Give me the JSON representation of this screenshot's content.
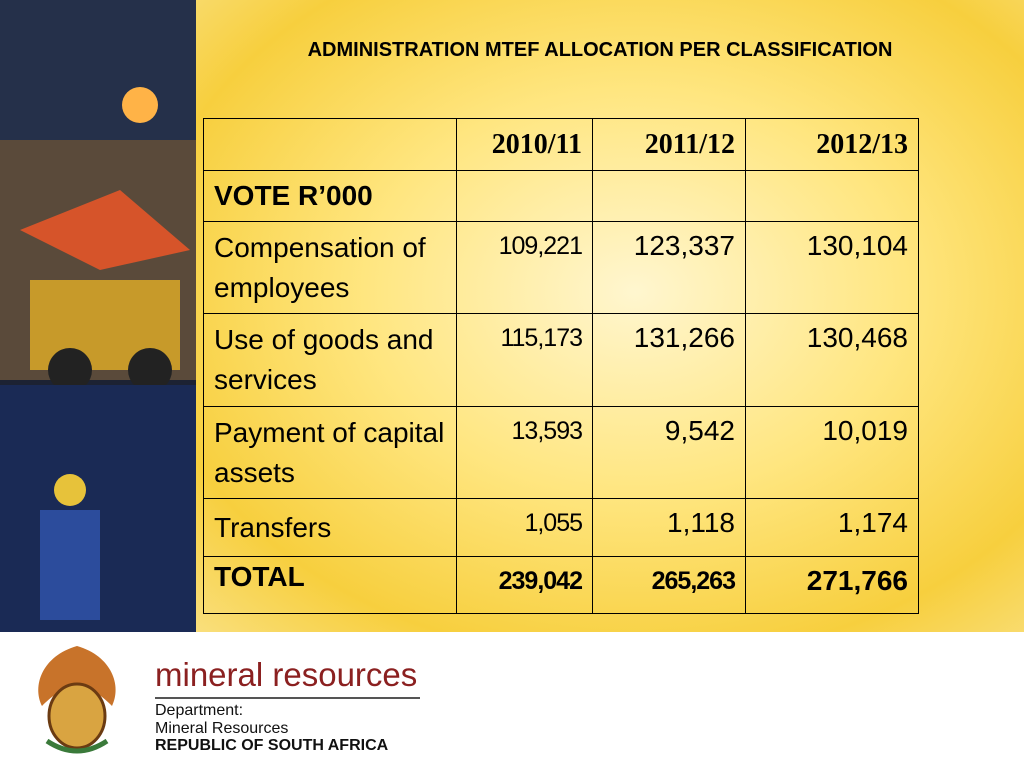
{
  "title": "ADMINISTRATION MTEF ALLOCATION PER CLASSIFICATION",
  "table": {
    "header": [
      "2010/11",
      "2011/12",
      "2012/13"
    ],
    "rows": [
      {
        "label": "VOTE R’000"
      },
      {
        "label": "Compensation of employees",
        "cells": [
          "109,221",
          "123,337",
          "130,104"
        ]
      },
      {
        "label": "Use of goods and services",
        "cells": [
          "115,173",
          "131,266",
          "130,468"
        ]
      },
      {
        "label": "Payment of capital assets",
        "cells": [
          "13,593",
          "9,542",
          "10,019"
        ]
      },
      {
        "label": "Transfers",
        "cells": [
          "1,055",
          "1,118",
          "1,174"
        ]
      },
      {
        "label": "TOTAL",
        "cells": [
          "239,042",
          "265,263",
          "271,766"
        ]
      }
    ]
  },
  "footer": {
    "brand": "mineral resources",
    "line1": "Department:",
    "line2": "Mineral Resources",
    "line3": "REPUBLIC OF SOUTH AFRICA"
  }
}
